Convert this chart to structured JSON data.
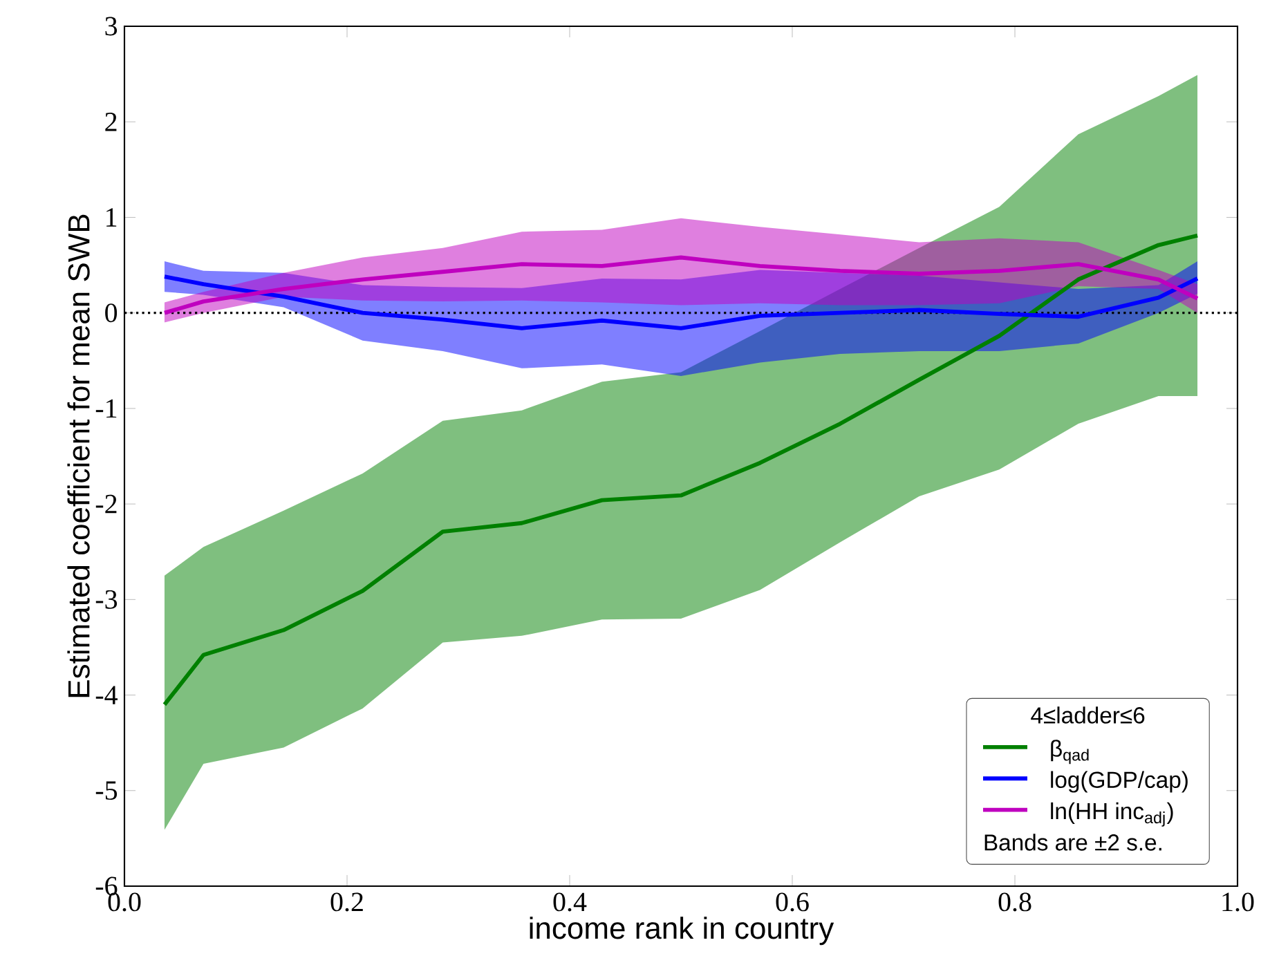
{
  "chart_data": {
    "type": "line",
    "xlabel": "income rank in country",
    "ylabel": "Estimated coefficient for mean SWB",
    "x": [
      0.036,
      0.071,
      0.143,
      0.214,
      0.286,
      0.357,
      0.429,
      0.5,
      0.571,
      0.643,
      0.714,
      0.786,
      0.857,
      0.929,
      0.964
    ],
    "series": [
      {
        "name": "β$_{qad}$",
        "color": "#008000",
        "values": [
          -4.1,
          -3.58,
          -3.32,
          -2.91,
          -2.29,
          -2.2,
          -1.96,
          -1.91,
          -1.57,
          -1.16,
          -0.7,
          -0.24,
          0.35,
          0.71,
          0.81
        ],
        "lower": [
          -5.41,
          -4.72,
          -4.55,
          -4.14,
          -3.45,
          -3.38,
          -3.21,
          -3.2,
          -2.9,
          -2.4,
          -1.92,
          -1.64,
          -1.16,
          -0.87,
          -0.87
        ],
        "upper": [
          -2.75,
          -2.45,
          -2.07,
          -1.68,
          -1.13,
          -1.02,
          -0.72,
          -0.62,
          -0.19,
          0.25,
          0.68,
          1.11,
          1.87,
          2.27,
          2.49
        ]
      },
      {
        "name": "log(GDP/cap)",
        "color": "#0000ff",
        "values": [
          0.38,
          0.3,
          0.17,
          0.0,
          -0.07,
          -0.16,
          -0.08,
          -0.16,
          -0.03,
          0.0,
          0.03,
          -0.01,
          -0.04,
          0.16,
          0.36
        ],
        "lower": [
          0.22,
          0.19,
          0.06,
          -0.29,
          -0.4,
          -0.58,
          -0.54,
          -0.66,
          -0.52,
          -0.43,
          -0.4,
          -0.4,
          -0.32,
          0.0,
          0.2
        ],
        "upper": [
          0.54,
          0.44,
          0.42,
          0.29,
          0.27,
          0.26,
          0.36,
          0.35,
          0.45,
          0.42,
          0.39,
          0.32,
          0.25,
          0.29,
          0.54
        ]
      },
      {
        "name": "ln(HH inc$_{adj}$)",
        "color": "#bf00bf",
        "values": [
          0.0,
          0.12,
          0.25,
          0.35,
          0.43,
          0.51,
          0.49,
          0.58,
          0.49,
          0.44,
          0.41,
          0.44,
          0.51,
          0.35,
          0.15
        ],
        "lower": [
          -0.1,
          0.0,
          0.17,
          0.13,
          0.12,
          0.13,
          0.11,
          0.08,
          0.1,
          0.08,
          0.08,
          0.1,
          0.28,
          0.25,
          0.0
        ],
        "upper": [
          0.11,
          0.22,
          0.42,
          0.58,
          0.68,
          0.85,
          0.87,
          0.99,
          0.9,
          0.82,
          0.74,
          0.78,
          0.74,
          0.45,
          0.3
        ]
      }
    ],
    "xlim": [
      0,
      1
    ],
    "ylim": [
      -6,
      3
    ],
    "xticks": [
      {
        "value": 0,
        "label": "0.0"
      },
      0.2,
      0.4,
      0.6,
      0.8,
      {
        "value": 1,
        "label": "1.0"
      }
    ],
    "yticks": [
      -6,
      -5,
      -4,
      -3,
      -2,
      -1,
      0,
      1,
      2,
      3
    ],
    "ref_lines": [
      {
        "axis": "y",
        "value": 0,
        "color": "#000000",
        "line_style": "dotted"
      }
    ],
    "legend": "bottom right",
    "legend_title": "4≤ladder≤6",
    "annotations": [
      "Bands are ±2 s.e."
    ]
  }
}
